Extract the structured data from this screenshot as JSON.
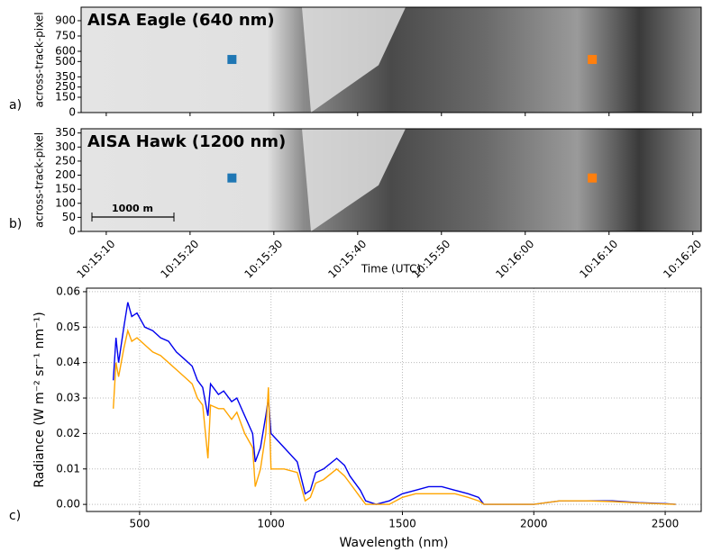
{
  "chart_data": [
    {
      "type": "image",
      "panel_label": "a)",
      "title": "AISA Eagle (640 nm)",
      "ylabel": "across-track-pixel",
      "ylim": [
        0,
        1032
      ],
      "yticks": [
        0,
        150,
        250,
        350,
        500,
        600,
        750,
        900
      ],
      "xlim": [
        "10:15:07",
        "10:16:21"
      ],
      "xticks": [
        "10:15:10",
        "10:15:20",
        "10:15:30",
        "10:15:40",
        "10:15:50",
        "10:16:00",
        "10:16:10",
        "10:16:20"
      ],
      "show_xtick_labels": false,
      "markers": [
        {
          "color": "#1f77b4",
          "x": "10:15:25",
          "y": 520
        },
        {
          "color": "#ff7f0e",
          "x": "10:16:08",
          "y": 520
        }
      ]
    },
    {
      "type": "image",
      "panel_label": "b)",
      "title": "AISA Hawk (1200 nm)",
      "ylabel": "across-track-pixel",
      "ylim": [
        0,
        365
      ],
      "yticks": [
        0,
        50,
        100,
        150,
        200,
        250,
        300,
        350
      ],
      "xlim": [
        "10:15:07",
        "10:16:21"
      ],
      "xticks": [
        "10:15:10",
        "10:15:20",
        "10:15:30",
        "10:15:40",
        "10:15:50",
        "10:16:00",
        "10:16:10",
        "10:16:20"
      ],
      "show_xtick_labels": true,
      "xlabel": "Time (UTC)",
      "scalebar_label": "1000 m",
      "markers": [
        {
          "color": "#1f77b4",
          "x": "10:15:25",
          "y": 190
        },
        {
          "color": "#ff7f0e",
          "x": "10:16:08",
          "y": 190
        }
      ]
    },
    {
      "type": "line",
      "panel_label": "c)",
      "xlabel": "Wavelength (nm)",
      "ylabel": "Radiance (W m⁻² sr⁻¹ nm⁻¹)",
      "xlim": [
        298,
        2637
      ],
      "xticks": [
        500,
        1000,
        1500,
        2000,
        2500
      ],
      "ylim": [
        -0.002,
        0.061
      ],
      "yticks": [
        {
          "value": 0,
          "label": "0.00"
        },
        {
          "value": 0.01,
          "label": "0.01"
        },
        {
          "value": 0.02,
          "label": "0.02"
        },
        {
          "value": 0.03,
          "label": "0.03"
        },
        {
          "value": 0.04,
          "label": "0.04"
        },
        {
          "value": 0.05,
          "label": "0.05"
        },
        {
          "value": 0.06,
          "label": "0.06"
        }
      ],
      "grid": true,
      "x": [
        400,
        410,
        420,
        440,
        455,
        470,
        490,
        520,
        550,
        580,
        610,
        640,
        670,
        700,
        720,
        740,
        760,
        770,
        800,
        820,
        850,
        870,
        900,
        930,
        940,
        960,
        980,
        990,
        1000,
        1050,
        1100,
        1130,
        1150,
        1170,
        1200,
        1250,
        1280,
        1300,
        1340,
        1360,
        1400,
        1450,
        1500,
        1550,
        1600,
        1650,
        1700,
        1750,
        1790,
        1810,
        1900,
        2000,
        2100,
        2200,
        2300,
        2400,
        2500,
        2540
      ],
      "series": [
        {
          "color": "#0000ee",
          "values": [
            0.035,
            0.047,
            0.04,
            0.05,
            0.057,
            0.053,
            0.054,
            0.05,
            0.049,
            0.047,
            0.046,
            0.043,
            0.041,
            0.039,
            0.035,
            0.033,
            0.025,
            0.034,
            0.031,
            0.032,
            0.029,
            0.03,
            0.025,
            0.02,
            0.012,
            0.016,
            0.025,
            0.03,
            0.02,
            0.016,
            0.012,
            0.003,
            0.004,
            0.009,
            0.01,
            0.013,
            0.011,
            0.008,
            0.004,
            0.001,
            0.0,
            0.001,
            0.003,
            0.004,
            0.005,
            0.005,
            0.004,
            0.003,
            0.002,
            0.0,
            0.0,
            0.0,
            0.001,
            0.001,
            0.001,
            0.0005,
            0.0002,
            0
          ]
        },
        {
          "color": "#ffa500",
          "values": [
            0.027,
            0.04,
            0.036,
            0.044,
            0.049,
            0.046,
            0.047,
            0.045,
            0.043,
            0.042,
            0.04,
            0.038,
            0.036,
            0.034,
            0.03,
            0.028,
            0.013,
            0.028,
            0.027,
            0.027,
            0.024,
            0.026,
            0.02,
            0.016,
            0.005,
            0.01,
            0.02,
            0.033,
            0.01,
            0.01,
            0.009,
            0.001,
            0.002,
            0.006,
            0.007,
            0.01,
            0.008,
            0.006,
            0.002,
            0.0,
            0.0,
            0.0,
            0.002,
            0.003,
            0.003,
            0.003,
            0.003,
            0.002,
            0.001,
            0.0,
            0.0,
            0.0,
            0.001,
            0.001,
            0.0008,
            0.0004,
            0.0001,
            0
          ]
        }
      ]
    }
  ]
}
